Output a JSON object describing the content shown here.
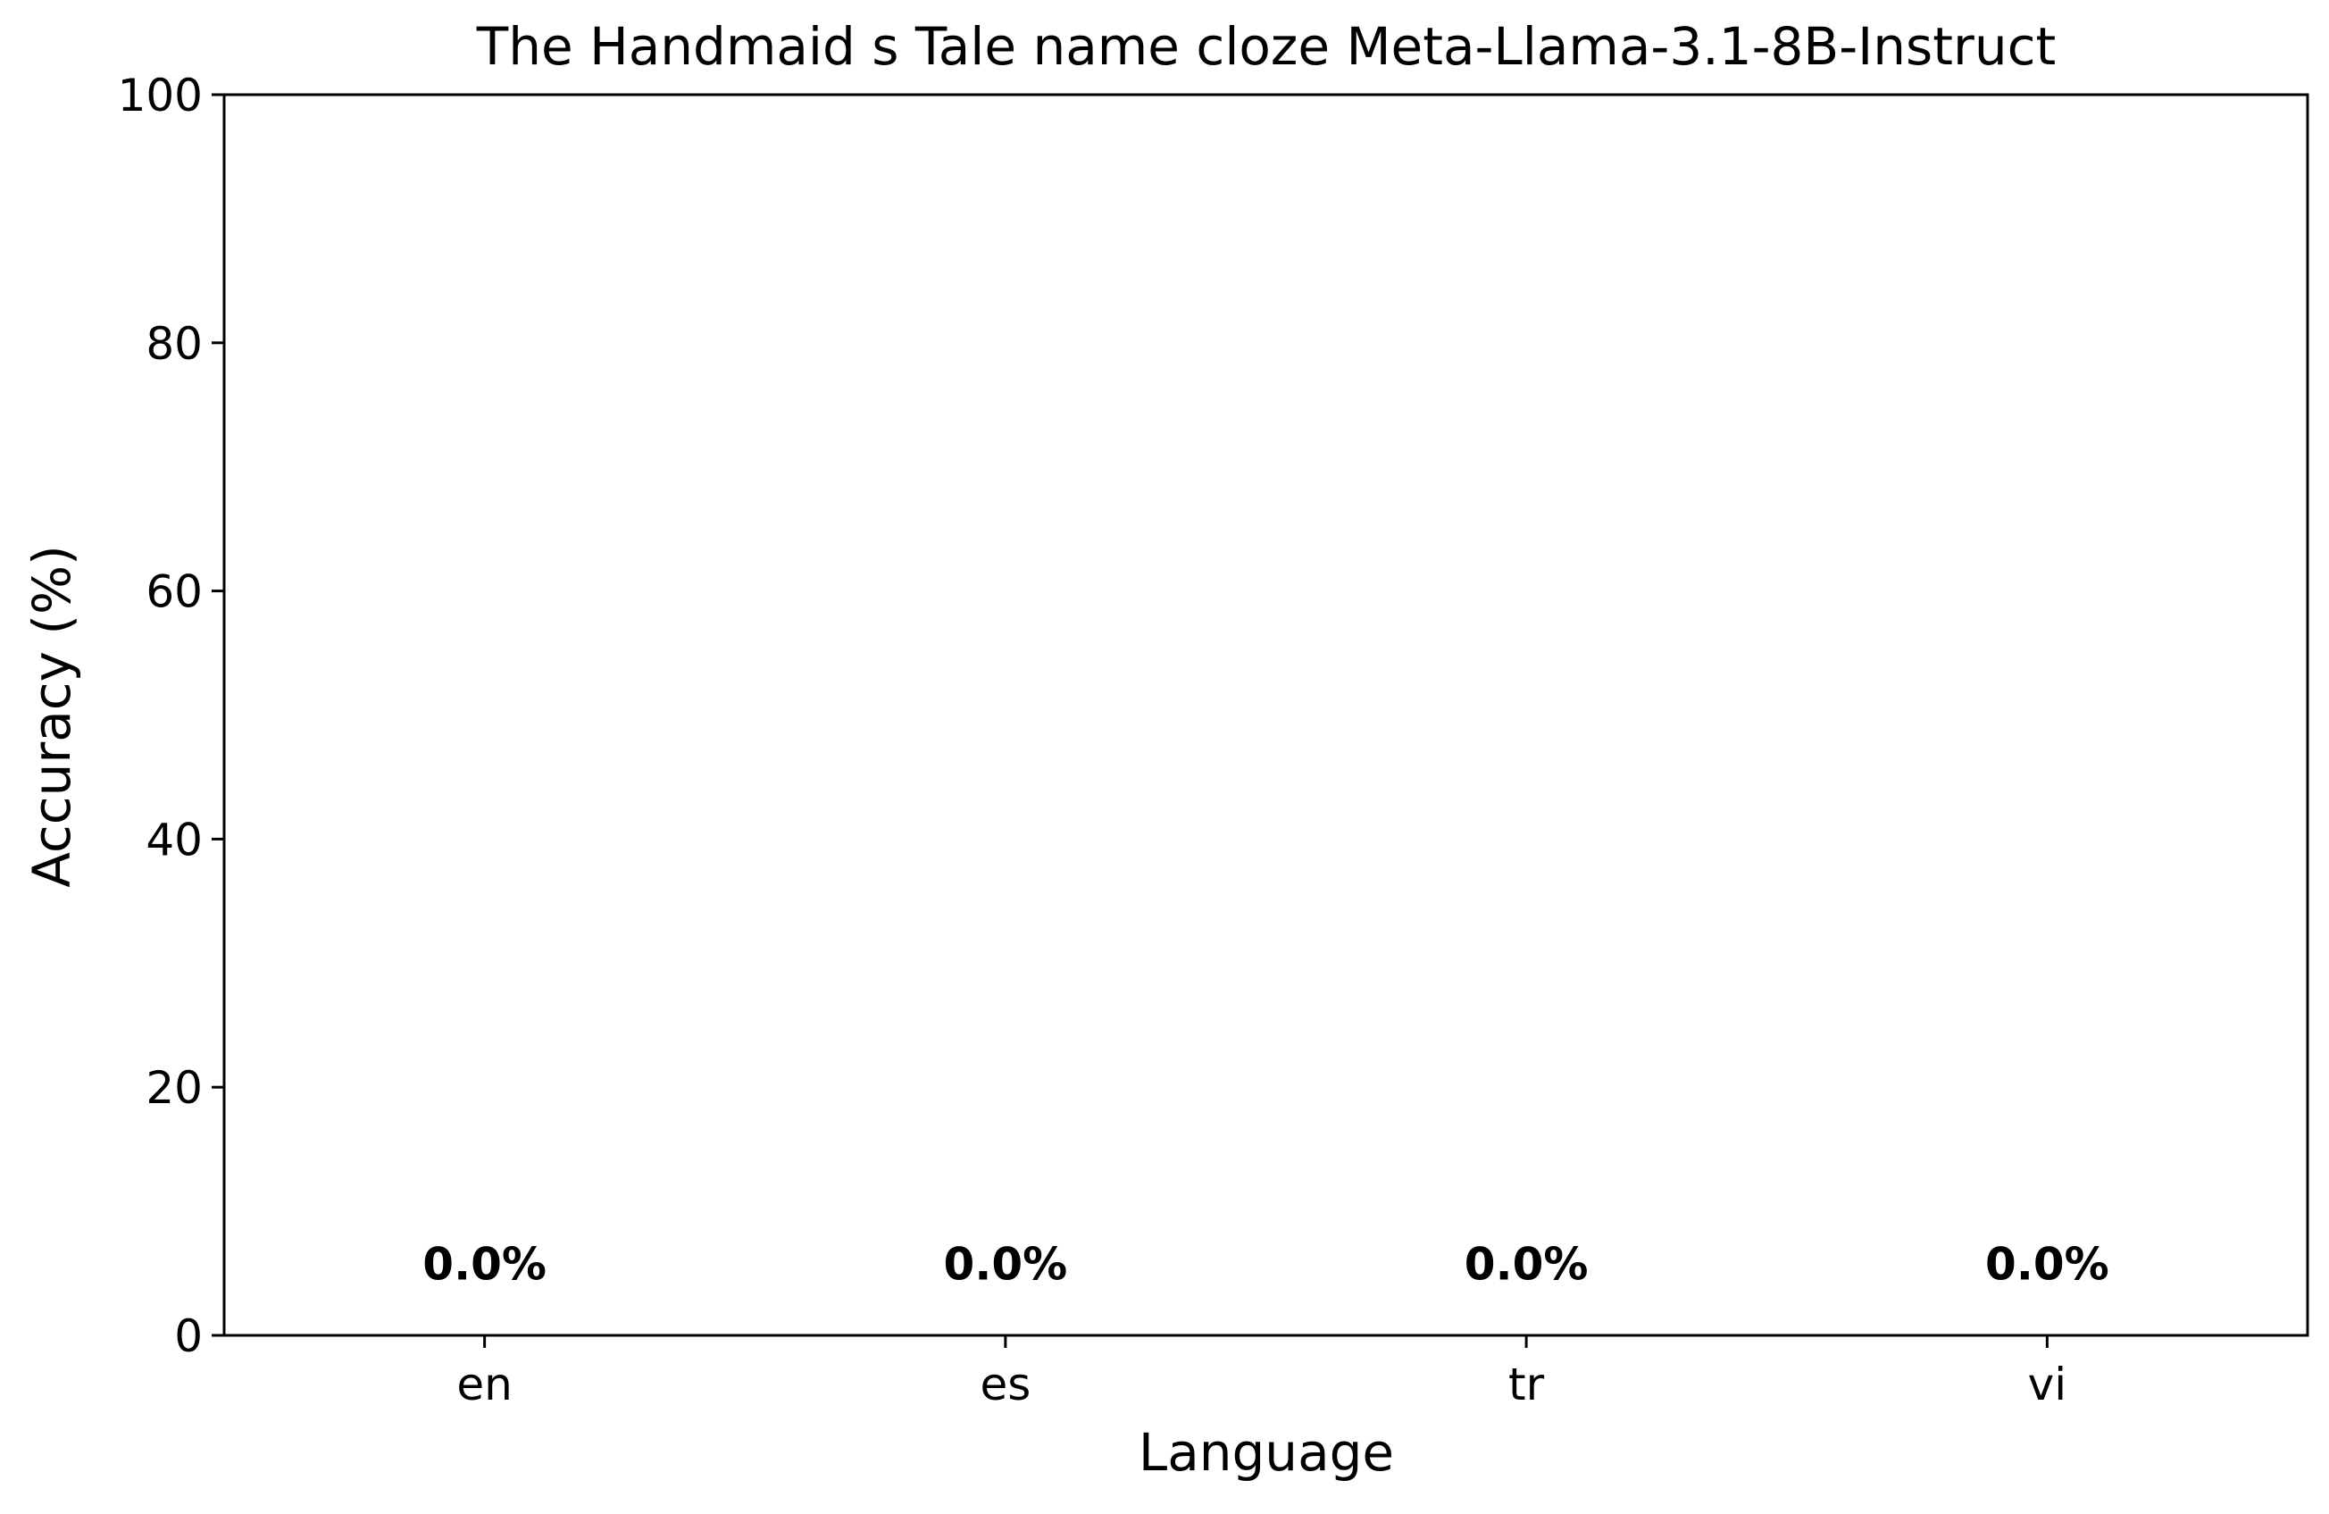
{
  "chart_data": {
    "type": "bar",
    "title": "The Handmaid s Tale name cloze Meta-Llama-3.1-8B-Instruct",
    "xlabel": "Language",
    "ylabel": "Accuracy (%)",
    "categories": [
      "en",
      "es",
      "tr",
      "vi"
    ],
    "values": [
      0.0,
      0.0,
      0.0,
      0.0
    ],
    "data_labels": [
      "0.0%",
      "0.0%",
      "0.0%",
      "0.0%"
    ],
    "ylim": [
      0,
      100
    ],
    "yticks": [
      0,
      20,
      40,
      60,
      80,
      100
    ],
    "grid": false,
    "legend": "none",
    "bar_color": "#1f77b4",
    "text_color": "#000000"
  }
}
